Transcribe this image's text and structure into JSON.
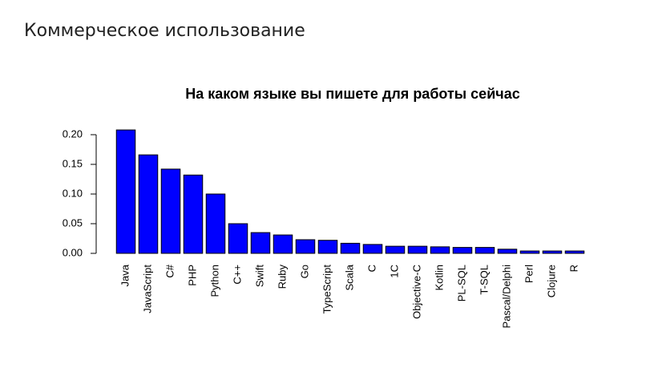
{
  "page_title": "Коммерческое использование",
  "chart_data": {
    "type": "bar",
    "title": "На каком языке вы пишете для работы сейчас",
    "categories": [
      "Java",
      "JavaScript",
      "C#",
      "PHP",
      "Python",
      "C++",
      "Swift",
      "Ruby",
      "Go",
      "TypeScript",
      "Scala",
      "C",
      "1C",
      "Objective-C",
      "Kotlin",
      "PL-SQL",
      "T-SQL",
      "Pascal/Delphi",
      "Perl",
      "Clojure",
      "R"
    ],
    "values": [
      0.208,
      0.166,
      0.142,
      0.132,
      0.1,
      0.05,
      0.035,
      0.031,
      0.023,
      0.022,
      0.017,
      0.015,
      0.012,
      0.012,
      0.011,
      0.01,
      0.01,
      0.007,
      0.004,
      0.004,
      0.004
    ],
    "color": "#0000ff",
    "ylim": [
      0,
      0.2
    ],
    "yticks": [
      {
        "value": 0,
        "label": "0.00"
      },
      {
        "value": 0.05,
        "label": "0.05"
      },
      {
        "value": 0.1,
        "label": "0.10"
      },
      {
        "value": 0.15,
        "label": "0.15"
      },
      {
        "value": 0.2,
        "label": "0.20"
      }
    ]
  }
}
